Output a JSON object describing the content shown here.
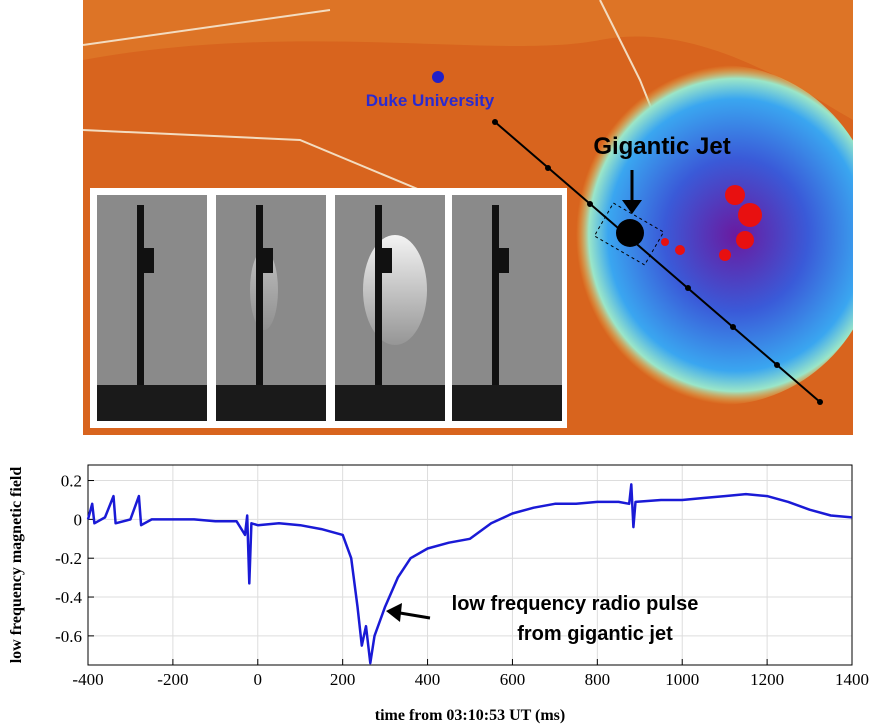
{
  "map": {
    "labels": [
      "Duke University",
      "Gigantic Jet"
    ]
  },
  "chart_data": {
    "type": "line",
    "ylabel": "low frequency magnetic field",
    "xlabel": "time from 03:10:53 UT (ms)",
    "annotation": [
      "low frequency radio pulse",
      "from gigantic jet"
    ],
    "color": "#1a1ad6",
    "x": [
      -400,
      -390,
      -385,
      -360,
      -340,
      -335,
      -300,
      -280,
      -275,
      -250,
      -200,
      -150,
      -100,
      -50,
      -30,
      -25,
      -20,
      -15,
      0,
      50,
      100,
      150,
      200,
      220,
      235,
      245,
      255,
      265,
      275,
      300,
      330,
      360,
      400,
      450,
      500,
      550,
      600,
      650,
      700,
      750,
      800,
      850,
      875,
      880,
      885,
      890,
      950,
      1000,
      1050,
      1100,
      1150,
      1200,
      1250,
      1300,
      1350,
      1400
    ],
    "values": [
      0,
      0.08,
      -0.02,
      0.01,
      0.12,
      -0.02,
      0,
      0.12,
      -0.03,
      0,
      0,
      0,
      -0.01,
      -0.01,
      -0.08,
      0.02,
      -0.33,
      -0.02,
      -0.03,
      -0.02,
      -0.03,
      -0.05,
      -0.08,
      -0.2,
      -0.45,
      -0.65,
      -0.55,
      -0.74,
      -0.6,
      -0.45,
      -0.3,
      -0.2,
      -0.15,
      -0.12,
      -0.1,
      -0.02,
      0.03,
      0.06,
      0.08,
      0.08,
      0.09,
      0.09,
      0.08,
      0.18,
      -0.04,
      0.09,
      0.1,
      0.1,
      0.11,
      0.12,
      0.13,
      0.12,
      0.09,
      0.05,
      0.02,
      0.01
    ],
    "xlim": [
      -400,
      1400
    ],
    "xticks": [
      -400,
      -200,
      0,
      200,
      400,
      600,
      800,
      1000,
      1200,
      1400
    ],
    "ylim": [
      -0.75,
      0.28
    ],
    "yticks": [
      0.2,
      0,
      -0.2,
      -0.4,
      -0.6
    ],
    "grid": true
  }
}
